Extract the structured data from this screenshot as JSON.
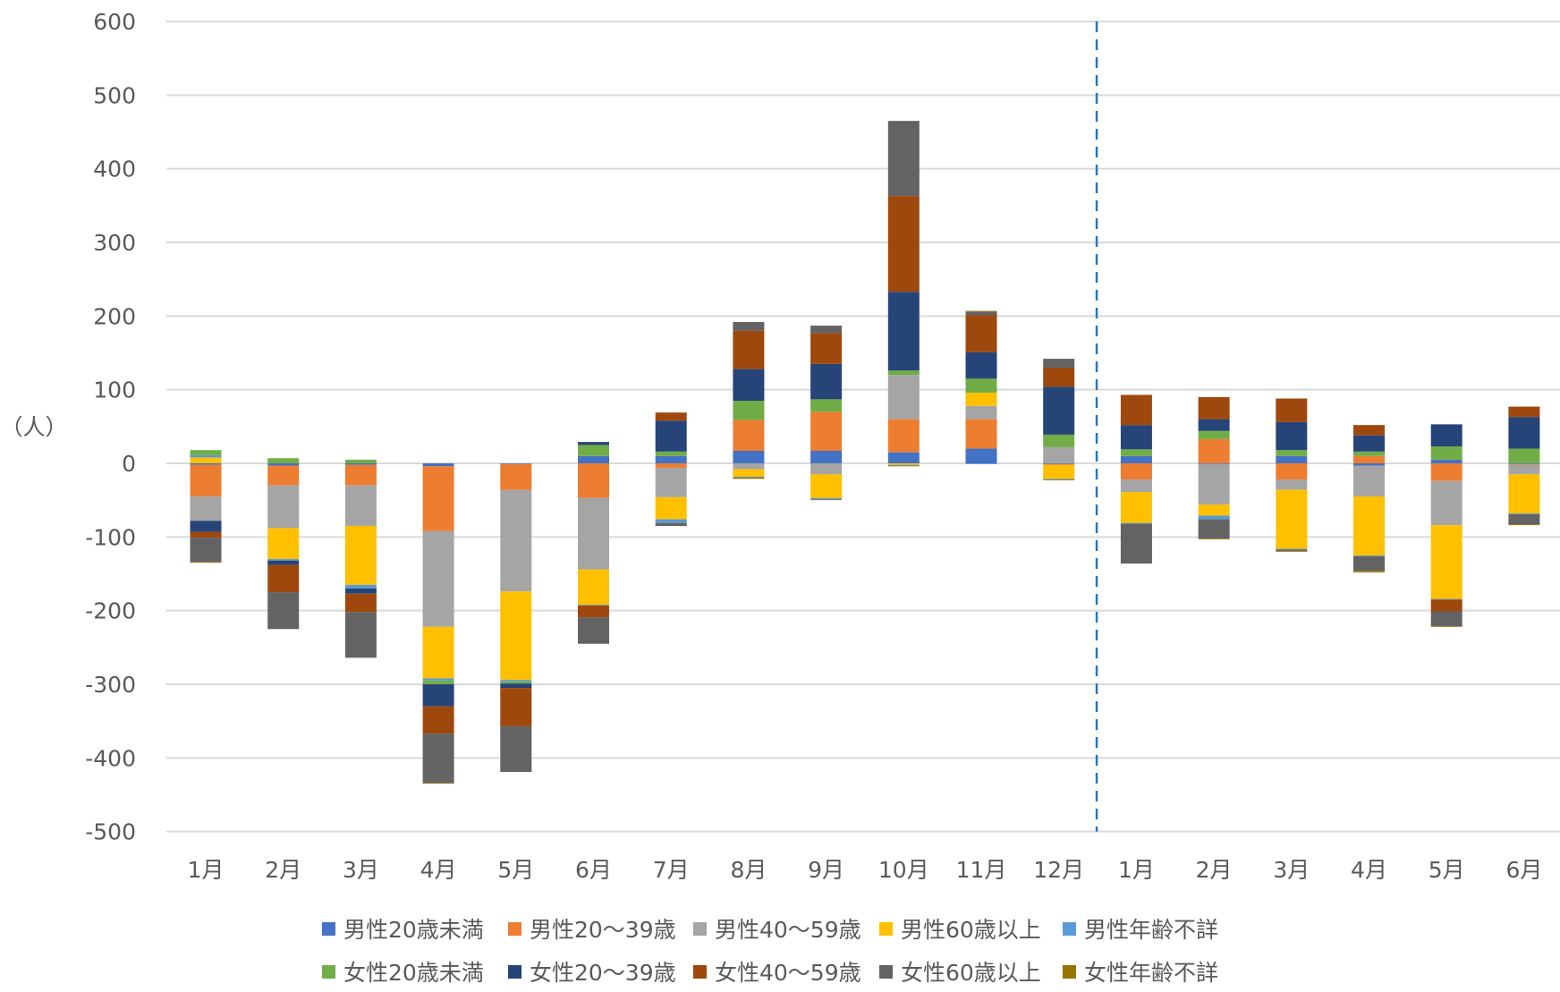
{
  "chart_data": {
    "type": "bar",
    "stacked": true,
    "y_unit_label": "（人）",
    "ylim": [
      -500,
      600
    ],
    "yticks": [
      600,
      500,
      400,
      300,
      200,
      100,
      0,
      -100,
      -200,
      -300,
      -400,
      -500
    ],
    "grid": true,
    "legend_position": "bottom",
    "annotations": [
      "dashed vertical line between the two year groups (after 12月)"
    ],
    "categories": [
      "1月",
      "2月",
      "3月",
      "4月",
      "5月",
      "6月",
      "7月",
      "8月",
      "9月",
      "10月",
      "11月",
      "12月",
      "1月",
      "2月",
      "3月",
      "4月",
      "5月",
      "6月"
    ],
    "series": [
      {
        "name": "男性20歳未満",
        "color": "#4472C4",
        "values": [
          -2,
          -3,
          -2,
          -4,
          -1,
          10,
          10,
          17,
          17,
          15,
          20,
          -1,
          10,
          -1,
          10,
          -3,
          5,
          -1
        ]
      },
      {
        "name": "男性20～39歳",
        "color": "#ED7D31",
        "values": [
          -43,
          -27,
          -28,
          -88,
          -35,
          -47,
          -6,
          42,
          53,
          45,
          40,
          -1,
          -22,
          33,
          -22,
          10,
          -24,
          -1
        ]
      },
      {
        "name": "男性40～59歳",
        "color": "#A5A5A5",
        "values": [
          -33,
          -58,
          -55,
          -130,
          -138,
          -97,
          -40,
          -8,
          -15,
          60,
          18,
          22,
          -17,
          -55,
          -14,
          -42,
          -60,
          -13
        ]
      },
      {
        "name": "男性60歳以上",
        "color": "#FFC000",
        "values": [
          8,
          -42,
          -80,
          -70,
          -120,
          -48,
          -30,
          -10,
          -32,
          -2,
          18,
          -19,
          -42,
          -15,
          -80,
          -80,
          -100,
          -53
        ]
      },
      {
        "name": "男性年齢不詳",
        "color": "#5B9BD5",
        "values": [
          3,
          -2,
          -5,
          -3,
          -2,
          -1,
          -5,
          -1,
          -2,
          -1,
          -1,
          -1,
          -1,
          -5,
          -1,
          -1,
          -1,
          -1
        ]
      },
      {
        "name": "女性20歳未満",
        "color": "#70AD47",
        "values": [
          7,
          7,
          5,
          -5,
          -3,
          15,
          6,
          26,
          17,
          6,
          19,
          17,
          9,
          11,
          8,
          6,
          18,
          20
        ]
      },
      {
        "name": "女性20～39歳",
        "color": "#264478",
        "values": [
          -15,
          -6,
          -7,
          -30,
          -6,
          4,
          42,
          43,
          48,
          107,
          36,
          65,
          33,
          16,
          38,
          22,
          30,
          43
        ]
      },
      {
        "name": "女性40～59歳",
        "color": "#9E480E",
        "values": [
          -8,
          -37,
          -25,
          -37,
          -52,
          -16,
          11,
          52,
          42,
          130,
          50,
          26,
          41,
          30,
          32,
          14,
          -16,
          14
        ]
      },
      {
        "name": "女性60歳以上",
        "color": "#636363",
        "values": [
          -33,
          -50,
          -62,
          -67,
          -62,
          -36,
          -4,
          12,
          10,
          102,
          5,
          12,
          -54,
          -26,
          -2,
          -20,
          -20,
          -14
        ]
      },
      {
        "name": "女性年齢不詳",
        "color": "#997300",
        "values": [
          -1,
          0,
          0,
          -1,
          0,
          0,
          0,
          -2,
          -1,
          -1,
          1,
          -1,
          0,
          -1,
          -1,
          -2,
          -1,
          -1
        ]
      }
    ]
  }
}
